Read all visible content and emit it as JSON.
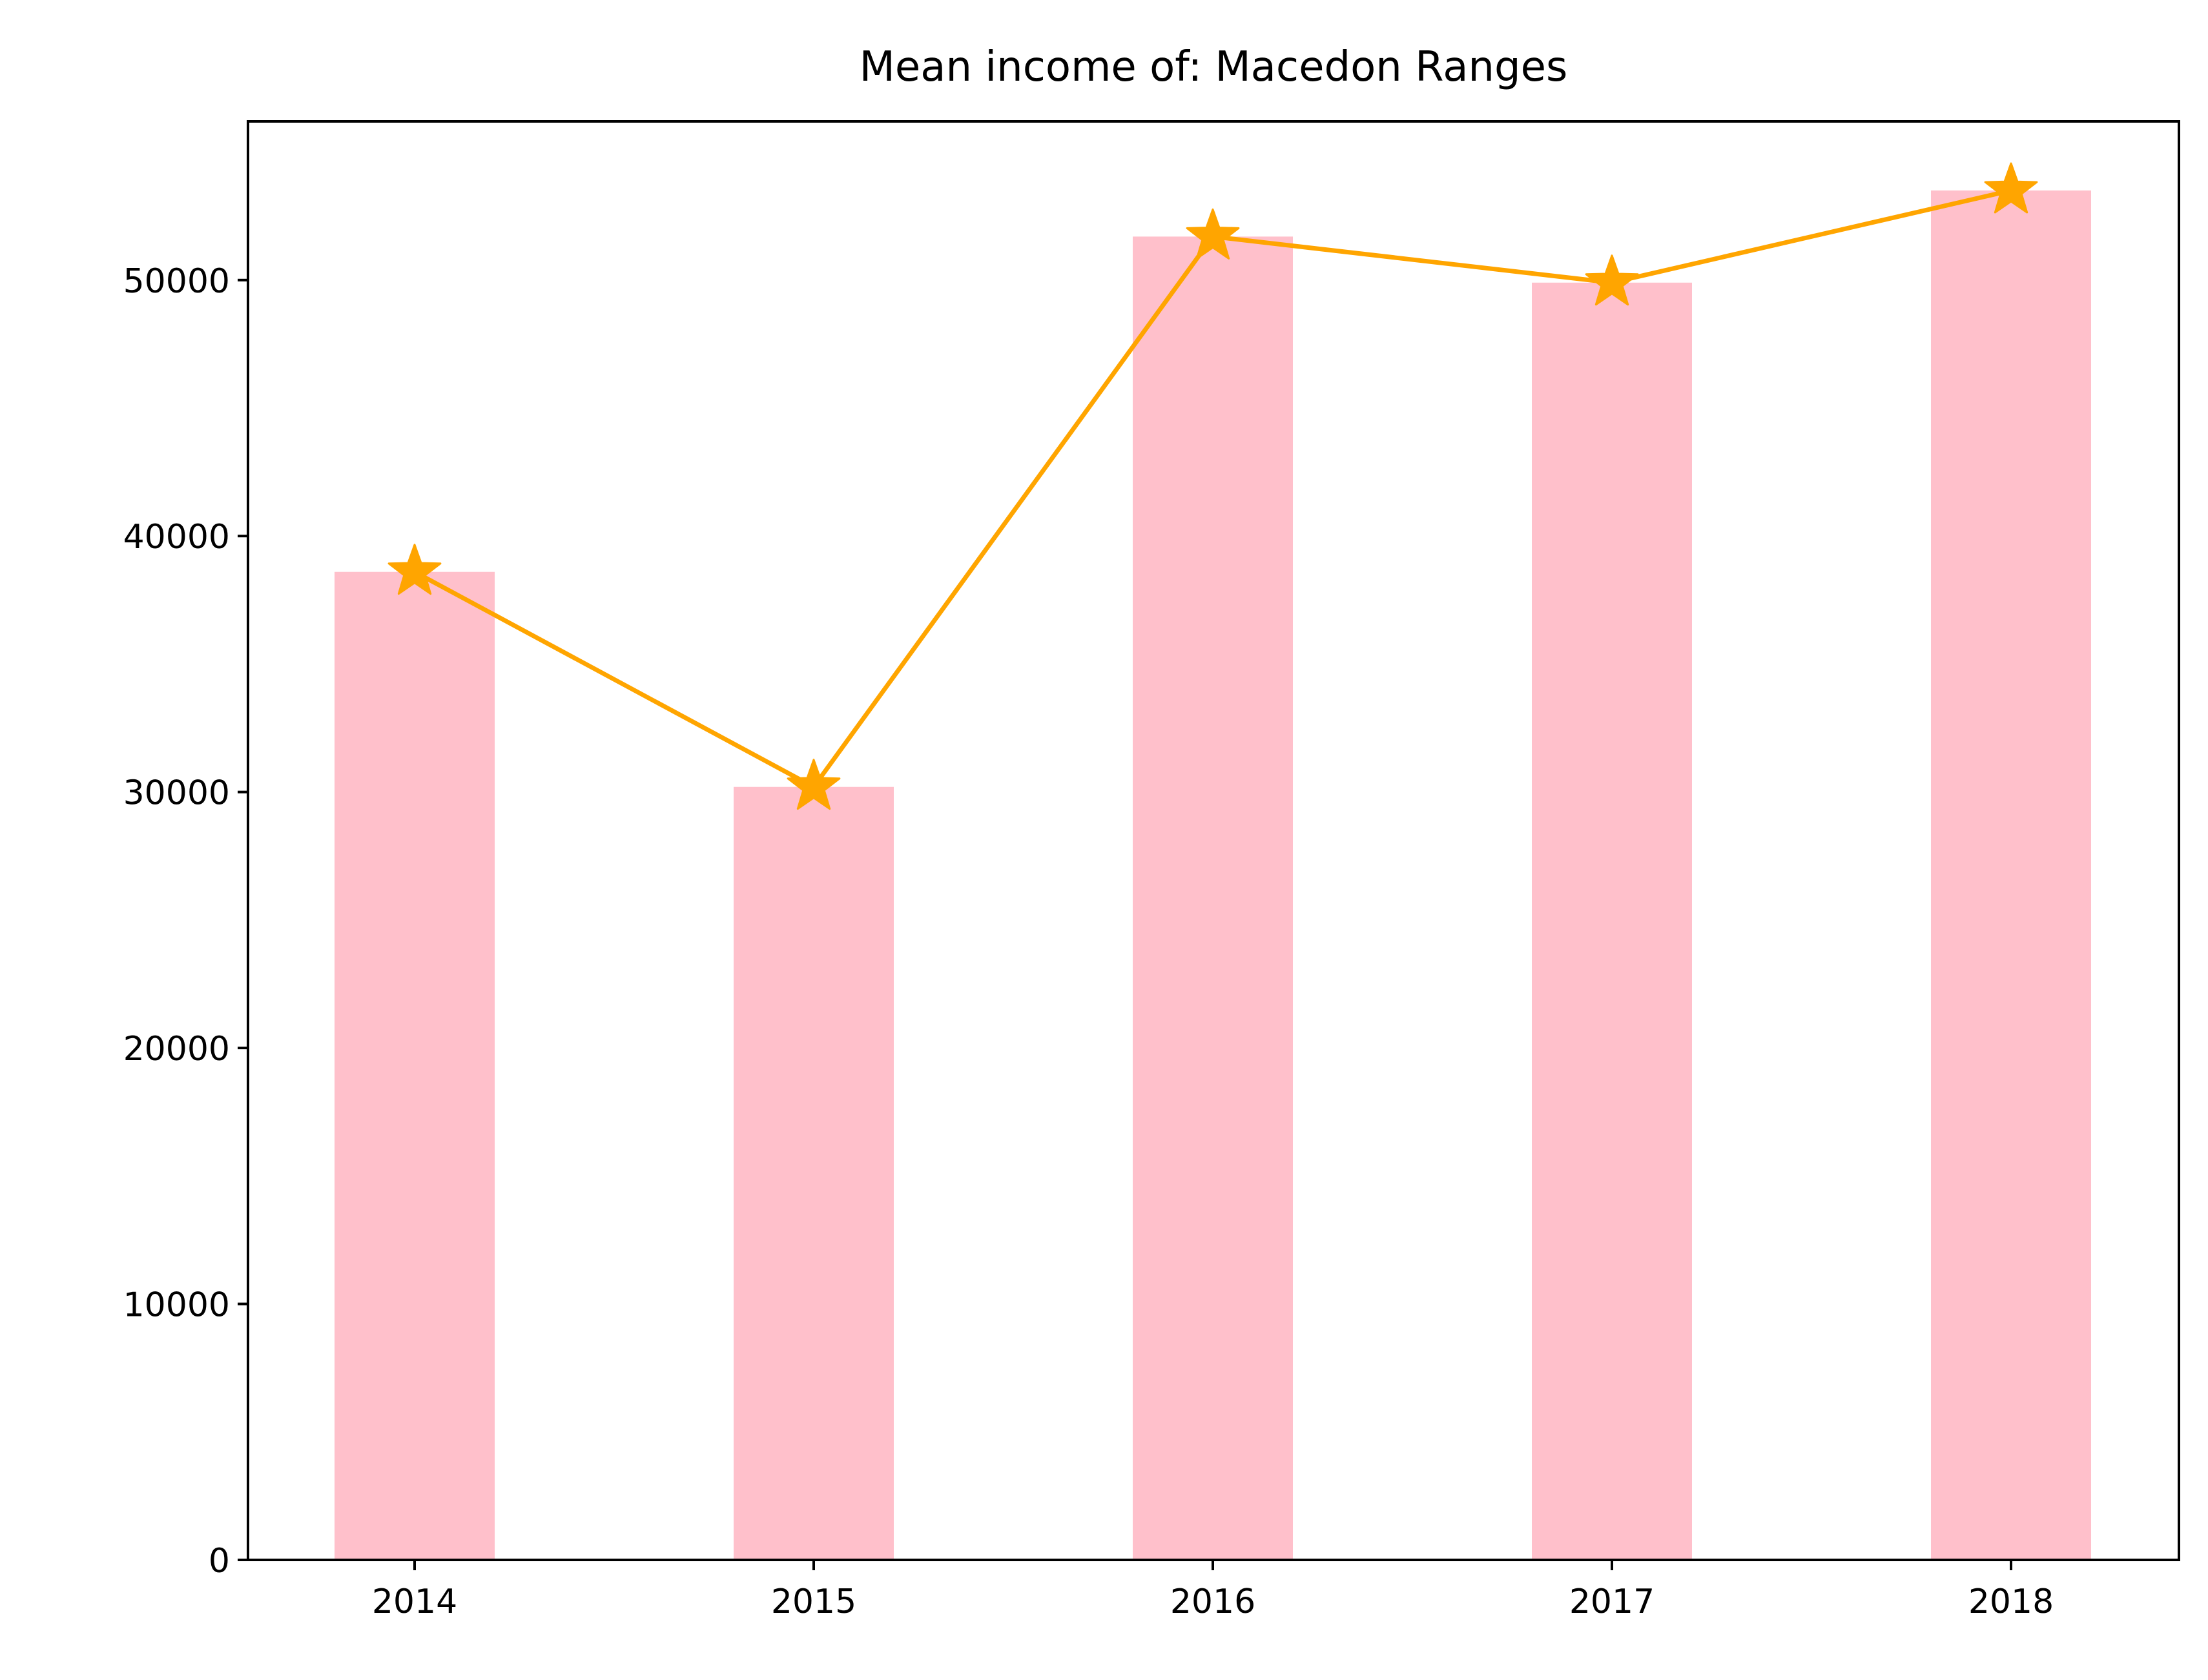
{
  "chart_data": {
    "type": "bar",
    "title": "Mean income of: Macedon Ranges",
    "xlabel": "",
    "ylabel": "",
    "categories": [
      "2014",
      "2015",
      "2016",
      "2017",
      "2018"
    ],
    "series": [
      {
        "type": "bar",
        "values": [
          38600,
          30200,
          51700,
          49900,
          53500
        ],
        "color": "#ffc0cb"
      },
      {
        "type": "line",
        "marker": "star",
        "values": [
          38600,
          30200,
          51700,
          49900,
          53500
        ],
        "color": "#ffa500"
      }
    ],
    "ylim": [
      0,
      56200
    ],
    "yticks": [
      0,
      10000,
      20000,
      30000,
      40000,
      50000
    ],
    "ytick_labels": [
      "0",
      "10000",
      "20000",
      "30000",
      "40000",
      "50000"
    ],
    "grid": false,
    "legend": "none"
  }
}
